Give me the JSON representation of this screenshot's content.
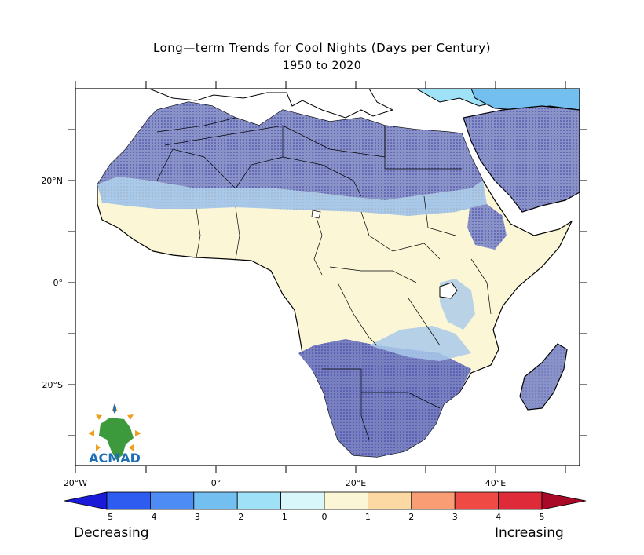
{
  "title": "Long—term Trends for Cool Nights (Days per Century)",
  "subtitle": "1950 to 2020",
  "axes": {
    "lat_labels": [
      "20°N",
      "0°",
      "20°S"
    ],
    "lon_labels": [
      "20°W",
      "0°",
      "20°E",
      "40°E"
    ]
  },
  "colorbar": {
    "ticks": [
      "-5",
      "-4",
      "-3",
      "-2",
      "-1",
      "0",
      "1",
      "2",
      "3",
      "4",
      "5"
    ],
    "colors": [
      "#1a1ad8",
      "#2e5cf0",
      "#4d8cf5",
      "#72bff0",
      "#9fe2f7",
      "#d7f7fa",
      "#fbf6d6",
      "#fcd9a3",
      "#f99d74",
      "#f04a45",
      "#df2a3a",
      "#a80a28"
    ],
    "left_label": "Decreasing",
    "right_label": "Increasing"
  },
  "logo": {
    "text": "ACMAD",
    "colors": {
      "blue": "#1f6fb5",
      "green": "#3c9a3c",
      "sun": "#f0a020"
    }
  },
  "colors": {
    "land_neutral": "#fbf6d6",
    "cool": "#8a93c8",
    "cooler": "#7880c0",
    "light": "#a9c9ea",
    "stipple": "#3a3aa0"
  }
}
